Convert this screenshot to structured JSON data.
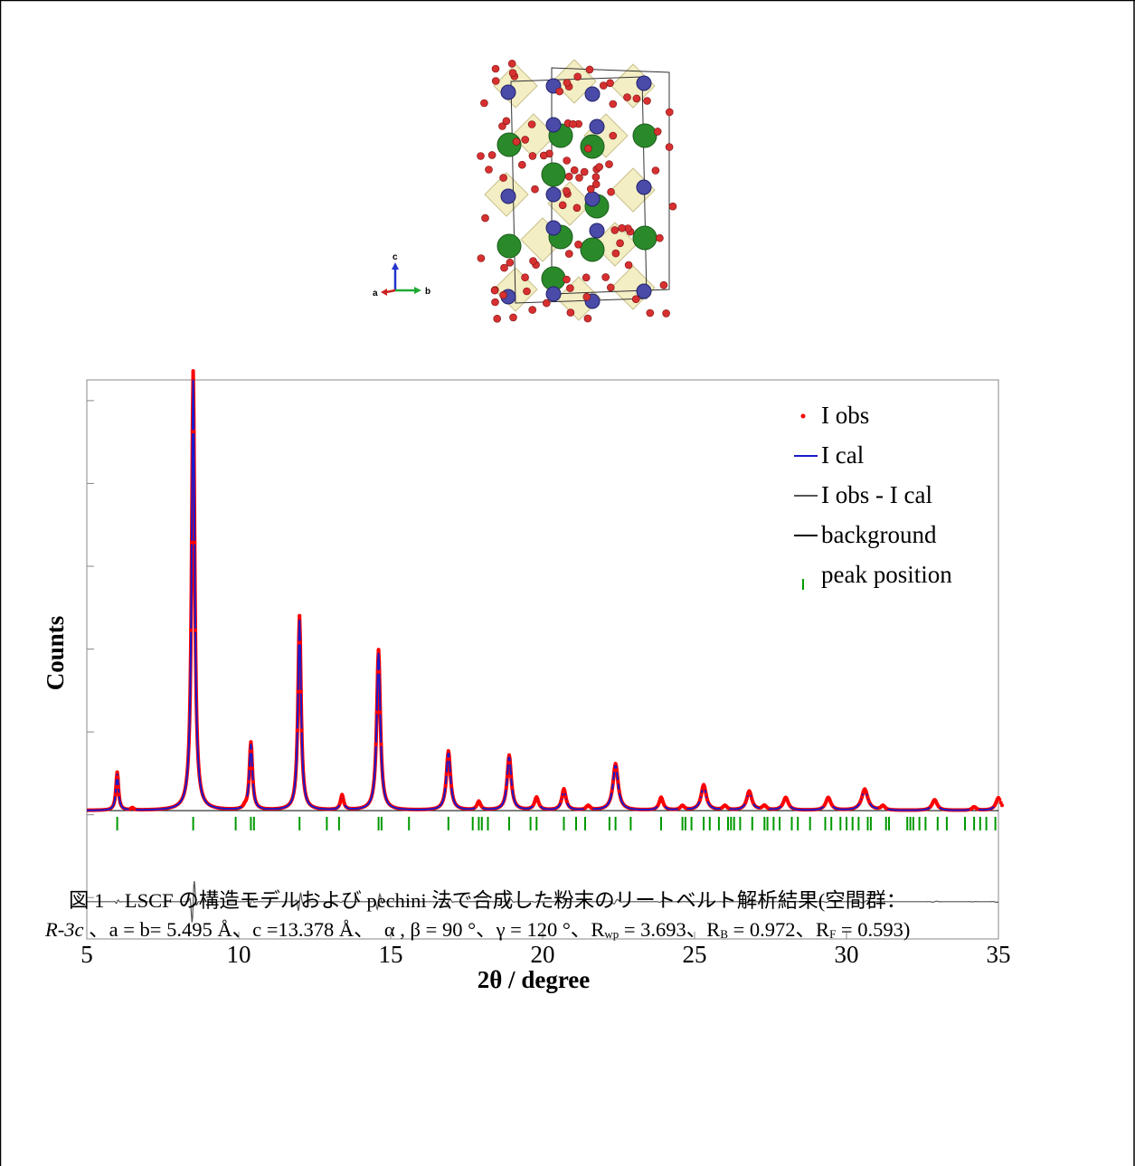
{
  "structure_model": {
    "axis_labels": {
      "c": "c",
      "a": "a",
      "b": "b"
    }
  },
  "chart_data": {
    "type": "line",
    "xlabel": "2θ / degree",
    "ylabel": "Counts",
    "xlim": [
      5,
      35
    ],
    "ylim": [
      -3,
      10.5
    ],
    "x_ticks": [
      "5",
      "10",
      "15",
      "20",
      "25",
      "30",
      "35"
    ],
    "y_ticks_labeled": false,
    "legend_position": "top-right",
    "legend": [
      {
        "label": "I obs",
        "marker": "·"
      },
      {
        "label": "I cal",
        "marker": "—"
      },
      {
        "label": "I obs - I cal",
        "marker": "—"
      },
      {
        "label": "background",
        "marker": "—"
      },
      {
        "label": "peak position",
        "marker": "|"
      }
    ],
    "colors": {
      "obs": "#ff0000",
      "cal": "#1a1acc",
      "diff": "#555555",
      "background": "#000000",
      "peak_position": "#009900"
    },
    "baseline": 0.1,
    "diff_offset": -2.1,
    "peaks": [
      {
        "pos": 6.0,
        "h": 0.9,
        "w": 0.05
      },
      {
        "pos": 6.5,
        "h": 0.05,
        "w": 0.05
      },
      {
        "pos": 8.5,
        "h": 10.4,
        "w": 0.06
      },
      {
        "pos": 10.2,
        "h": 0.05,
        "w": 0.05
      },
      {
        "pos": 10.4,
        "h": 1.6,
        "w": 0.06
      },
      {
        "pos": 12.0,
        "h": 4.6,
        "w": 0.06
      },
      {
        "pos": 13.4,
        "h": 0.35,
        "w": 0.06
      },
      {
        "pos": 14.6,
        "h": 3.8,
        "w": 0.07
      },
      {
        "pos": 16.9,
        "h": 1.4,
        "w": 0.08
      },
      {
        "pos": 17.9,
        "h": 0.2,
        "w": 0.07
      },
      {
        "pos": 18.9,
        "h": 1.3,
        "w": 0.08
      },
      {
        "pos": 19.8,
        "h": 0.3,
        "w": 0.08
      },
      {
        "pos": 20.7,
        "h": 0.5,
        "w": 0.08
      },
      {
        "pos": 21.5,
        "h": 0.1,
        "w": 0.08
      },
      {
        "pos": 22.4,
        "h": 1.1,
        "w": 0.1
      },
      {
        "pos": 23.9,
        "h": 0.3,
        "w": 0.08
      },
      {
        "pos": 24.6,
        "h": 0.1,
        "w": 0.08
      },
      {
        "pos": 25.3,
        "h": 0.6,
        "w": 0.1
      },
      {
        "pos": 26.0,
        "h": 0.1,
        "w": 0.08
      },
      {
        "pos": 26.8,
        "h": 0.45,
        "w": 0.1
      },
      {
        "pos": 27.3,
        "h": 0.1,
        "w": 0.08
      },
      {
        "pos": 28.0,
        "h": 0.3,
        "w": 0.1
      },
      {
        "pos": 29.4,
        "h": 0.3,
        "w": 0.1
      },
      {
        "pos": 30.6,
        "h": 0.5,
        "w": 0.12
      },
      {
        "pos": 31.2,
        "h": 0.1,
        "w": 0.08
      },
      {
        "pos": 32.9,
        "h": 0.25,
        "w": 0.1
      },
      {
        "pos": 34.2,
        "h": 0.08,
        "w": 0.08
      },
      {
        "pos": 35.0,
        "h": 0.3,
        "w": 0.1
      }
    ],
    "peak_positions": [
      6.0,
      8.5,
      9.9,
      10.4,
      10.5,
      12.0,
      12.9,
      13.3,
      14.6,
      14.7,
      15.6,
      16.9,
      17.7,
      17.9,
      18.0,
      18.2,
      18.9,
      19.6,
      19.8,
      20.7,
      21.1,
      21.4,
      22.2,
      22.4,
      22.9,
      23.9,
      24.6,
      24.7,
      24.9,
      25.3,
      25.5,
      25.8,
      26.1,
      26.2,
      26.3,
      26.5,
      26.9,
      27.3,
      27.4,
      27.6,
      27.8,
      28.2,
      28.4,
      28.8,
      29.3,
      29.5,
      29.8,
      30.0,
      30.2,
      30.4,
      30.7,
      30.8,
      31.3,
      31.4,
      32.0,
      32.1,
      32.2,
      32.4,
      32.6,
      33.0,
      33.3,
      33.9,
      34.2,
      34.4,
      34.6,
      34.9
    ]
  },
  "caption": {
    "line1": "図 1　LSCF の構造モデルおよび pechini 法で合成した粉末のリートベルト解析結果(空間群：",
    "space_group": "R-3c",
    "line2_rest": " 、a = b= 5.495 Å、c =13.378 Å、　α , β = 90 °、γ = 120 °、R",
    "rwp_sub": "wp",
    "rwp_val": " = 3.693、R",
    "rb_sub": "B",
    "rb_val": " = 0.972、R",
    "rf_sub": "F",
    "rf_val": " = 0.593)"
  }
}
